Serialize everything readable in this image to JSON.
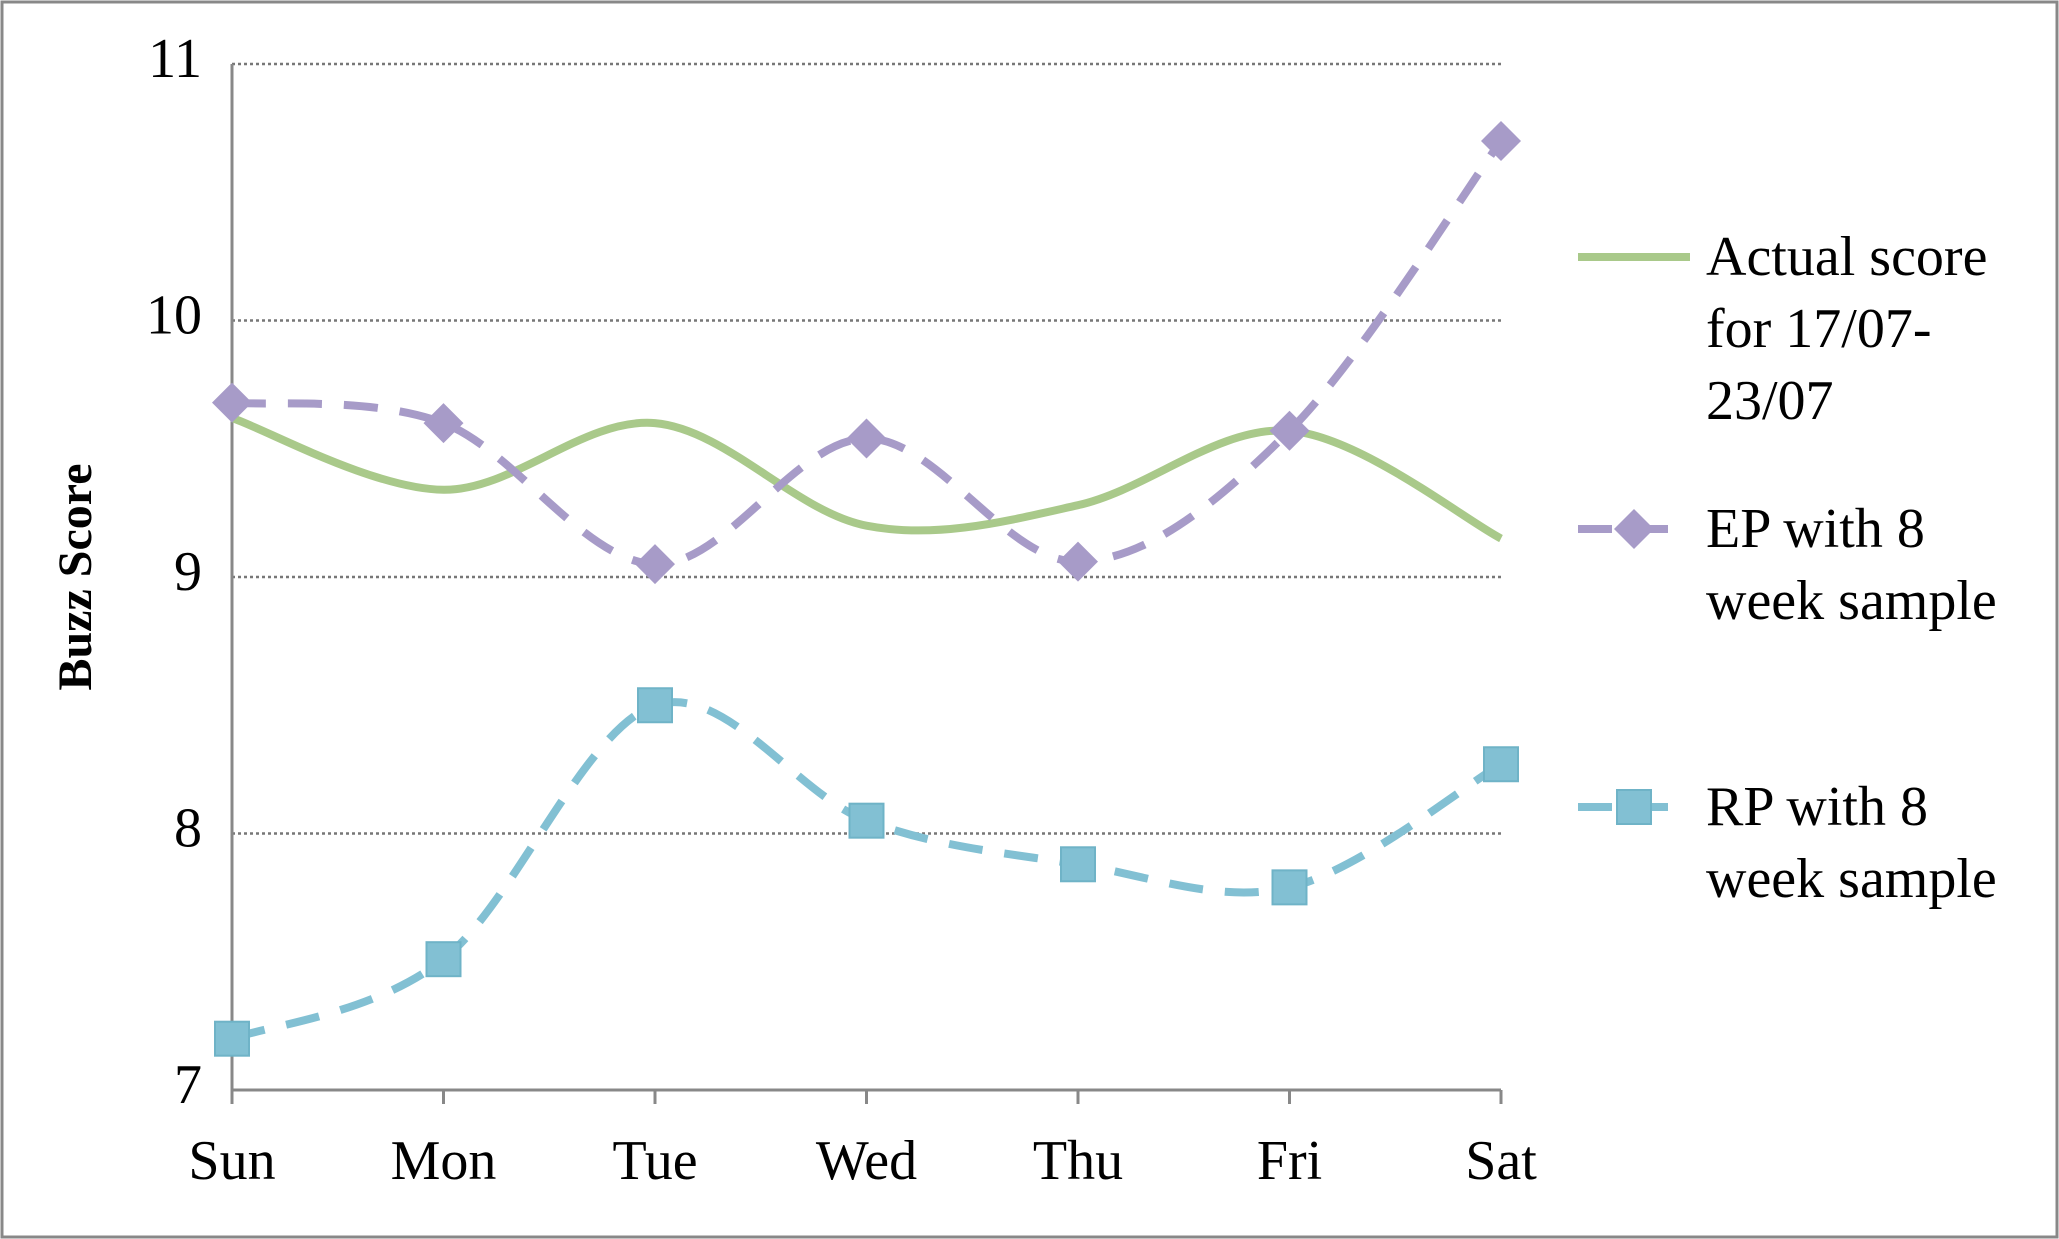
{
  "chart_data": {
    "type": "line",
    "y_label": "Buzz Score",
    "categories": [
      "Sun",
      "Mon",
      "Tue",
      "Wed",
      "Thu",
      "Fri",
      "Sat"
    ],
    "series": [
      {
        "name": "Actual score for 17/07-23/07",
        "color": "#a9c98a",
        "dash": false,
        "marker": "none",
        "values": [
          9.62,
          9.34,
          9.6,
          9.2,
          9.28,
          9.57,
          9.15
        ]
      },
      {
        "name": "EP with 8 week sample",
        "color": "#a79bc8",
        "dash": true,
        "marker": "diamond",
        "values": [
          9.68,
          9.6,
          9.05,
          9.54,
          9.06,
          9.57,
          10.7
        ]
      },
      {
        "name": "RP with 8 week sample",
        "color": "#82c0d3",
        "dash": true,
        "marker": "square",
        "values": [
          7.2,
          7.51,
          8.5,
          8.05,
          7.88,
          7.79,
          8.27
        ]
      }
    ],
    "ylim": [
      7,
      11
    ],
    "yticks": [
      7,
      8,
      9,
      10,
      11
    ],
    "grid": true,
    "smooth": true,
    "legend": "right"
  }
}
